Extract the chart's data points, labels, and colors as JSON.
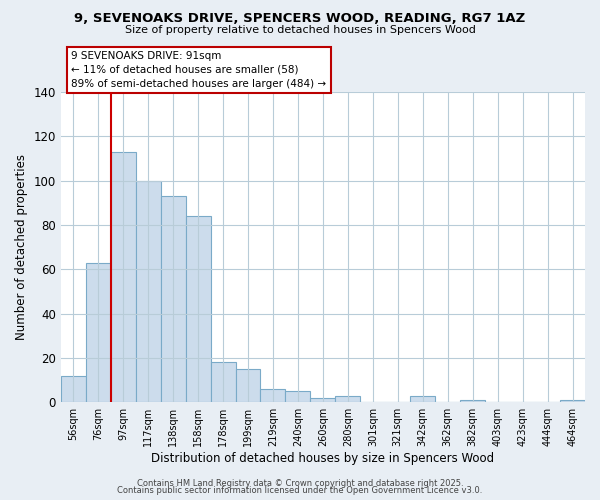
{
  "title1": "9, SEVENOAKS DRIVE, SPENCERS WOOD, READING, RG7 1AZ",
  "title2": "Size of property relative to detached houses in Spencers Wood",
  "xlabel": "Distribution of detached houses by size in Spencers Wood",
  "ylabel": "Number of detached properties",
  "bar_labels": [
    "56sqm",
    "76sqm",
    "97sqm",
    "117sqm",
    "138sqm",
    "158sqm",
    "178sqm",
    "199sqm",
    "219sqm",
    "240sqm",
    "260sqm",
    "280sqm",
    "301sqm",
    "321sqm",
    "342sqm",
    "362sqm",
    "382sqm",
    "403sqm",
    "423sqm",
    "444sqm",
    "464sqm"
  ],
  "bar_values": [
    12,
    63,
    113,
    100,
    93,
    84,
    18,
    15,
    6,
    5,
    2,
    3,
    0,
    0,
    3,
    0,
    1,
    0,
    0,
    0,
    1
  ],
  "bar_color": "#ccdcec",
  "bar_edge_color": "#7aaac8",
  "vline_color": "#cc0000",
  "annotation_text": "9 SEVENOAKS DRIVE: 91sqm\n← 11% of detached houses are smaller (58)\n89% of semi-detached houses are larger (484) →",
  "annotation_box_color": "#bb0000",
  "ylim": [
    0,
    140
  ],
  "yticks": [
    0,
    20,
    40,
    60,
    80,
    100,
    120,
    140
  ],
  "footer1": "Contains HM Land Registry data © Crown copyright and database right 2025.",
  "footer2": "Contains public sector information licensed under the Open Government Licence v3.0.",
  "bg_color": "#e8eef4",
  "plot_bg_color": "#ffffff",
  "grid_color": "#b8ccd8"
}
